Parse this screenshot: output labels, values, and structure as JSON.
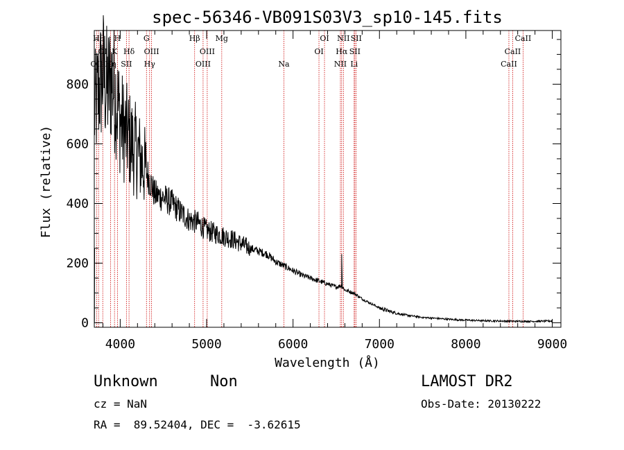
{
  "chart_data": {
    "type": "line",
    "title": "spec-56346-VB091S03V3_sp10-145.fits",
    "xlabel": "Wavelength (Å)",
    "ylabel": "Flux (relative)",
    "xlim": [
      3700,
      9100
    ],
    "ylim": [
      -15,
      980
    ],
    "x_ticks": [
      4000,
      5000,
      6000,
      7000,
      8000,
      9000
    ],
    "y_ticks": [
      0,
      200,
      400,
      600,
      800
    ],
    "grid": false,
    "series": [
      {
        "x": [
          3700,
          3750,
          3800,
          3850,
          3900,
          3950,
          4000,
          4050,
          4100,
          4150,
          4200,
          4250,
          4300,
          4350,
          4400,
          4500,
          4600,
          4700,
          4800,
          4900,
          5000,
          5100,
          5200,
          5300,
          5400,
          5500,
          5600,
          5700,
          5800,
          5900,
          6000,
          6100,
          6200,
          6300,
          6400,
          6500,
          6560,
          6600,
          6700,
          6800,
          6900,
          7000,
          7100,
          7200,
          7300,
          7400,
          7500,
          7600,
          7700,
          7800,
          7900,
          8000,
          8200,
          8400,
          8600,
          8800,
          9000
        ],
        "y": [
          700,
          780,
          840,
          780,
          820,
          760,
          680,
          640,
          620,
          590,
          570,
          540,
          510,
          470,
          430,
          420,
          400,
          370,
          345,
          335,
          310,
          300,
          290,
          280,
          265,
          250,
          240,
          230,
          205,
          190,
          175,
          160,
          150,
          140,
          130,
          120,
          125,
          110,
          100,
          80,
          65,
          50,
          40,
          32,
          26,
          22,
          18,
          16,
          14,
          12,
          10,
          9,
          7,
          6,
          5,
          5,
          6
        ]
      }
    ],
    "lines": [
      {
        "x": 3727,
        "label": "OII",
        "row": 2
      },
      {
        "x": 3750,
        "label": "Hθ",
        "row": 0
      },
      {
        "x": 3798,
        "label": "OI",
        "row": 1
      },
      {
        "x": 3889,
        "label": "Hη",
        "row": 2
      },
      {
        "x": 3934,
        "label": "K",
        "row": 1
      },
      {
        "x": 3968,
        "label": "H",
        "row": 0
      },
      {
        "x": 4072,
        "label": "SII",
        "row": 2
      },
      {
        "x": 4102,
        "label": "Hδ",
        "row": 1
      },
      {
        "x": 4304,
        "label": "G",
        "row": 0
      },
      {
        "x": 4340,
        "label": "Hγ",
        "row": 2
      },
      {
        "x": 4363,
        "label": "OIII",
        "row": 1
      },
      {
        "x": 4861,
        "label": "Hβ",
        "row": 0
      },
      {
        "x": 4959,
        "label": "OIII",
        "row": 2
      },
      {
        "x": 5007,
        "label": "OIII",
        "row": 1
      },
      {
        "x": 5175,
        "label": "Mg",
        "row": 0
      },
      {
        "x": 5894,
        "label": "Na",
        "row": 2
      },
      {
        "x": 6300,
        "label": "OI",
        "row": 1
      },
      {
        "x": 6364,
        "label": "OI",
        "row": 0
      },
      {
        "x": 6548,
        "label": "NII",
        "row": 2
      },
      {
        "x": 6563,
        "label": "Hα",
        "row": 1
      },
      {
        "x": 6583,
        "label": "NII",
        "row": 0
      },
      {
        "x": 6707,
        "label": "Li",
        "row": 2
      },
      {
        "x": 6716,
        "label": "SII",
        "row": 1
      },
      {
        "x": 6731,
        "label": "SII",
        "row": 0
      },
      {
        "x": 8498,
        "label": "CaII",
        "row": 2
      },
      {
        "x": 8542,
        "label": "CaII",
        "row": 1
      },
      {
        "x": 8662,
        "label": "CaII",
        "row": 0
      }
    ]
  },
  "info": {
    "class": "Unknown",
    "subclass": "Non",
    "survey": "LAMOST DR2",
    "redshift": "cz = NaN",
    "obs_date": "Obs-Date: 20130222",
    "coords": "RA =  89.52404, DEC =  -3.62615"
  },
  "colors": {
    "spectrum": "#000000",
    "line_marker": "#cc0000"
  }
}
